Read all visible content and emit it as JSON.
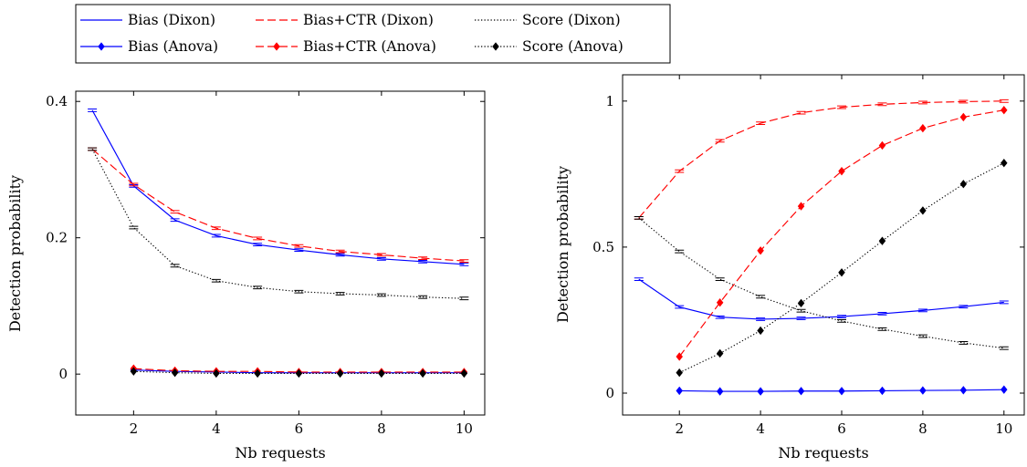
{
  "legend": {
    "entries": [
      {
        "label": "Bias (Dixon)",
        "color": "#0000ff",
        "dash": "solid",
        "marker": "none"
      },
      {
        "label": "Bias+CTR (Dixon)",
        "color": "#ff0000",
        "dash": "dashed",
        "marker": "none"
      },
      {
        "label": "Score (Dixon)",
        "color": "#000000",
        "dash": "dotted",
        "marker": "none"
      },
      {
        "label": "Bias (Anova)",
        "color": "#0000ff",
        "dash": "solid",
        "marker": "diamond"
      },
      {
        "label": "Bias+CTR (Anova)",
        "color": "#ff0000",
        "dash": "dashed",
        "marker": "diamond"
      },
      {
        "label": "Score (Anova)",
        "color": "#000000",
        "dash": "dotted",
        "marker": "diamond"
      }
    ],
    "columns": 3,
    "placement": "top-left"
  },
  "chart_data": [
    {
      "type": "line",
      "xlabel": "Nb requests",
      "ylabel": "Detection probability",
      "xlim": [
        0.6,
        10.5
      ],
      "ylim": [
        -0.06,
        0.415
      ],
      "xticks": [
        2,
        4,
        6,
        8,
        10
      ],
      "yticks": [
        0,
        0.2,
        0.4
      ],
      "ytick_labels": [
        "0",
        "0.2",
        "0.4"
      ],
      "grid": false,
      "series": [
        {
          "name": "Bias (Dixon)",
          "color": "#0000ff",
          "dash": "solid",
          "marker": "errorbar",
          "x": [
            1,
            2,
            3,
            4,
            5,
            6,
            7,
            8,
            9,
            10
          ],
          "y": [
            0.387,
            0.276,
            0.226,
            0.203,
            0.19,
            0.182,
            0.175,
            0.169,
            0.165,
            0.161
          ]
        },
        {
          "name": "Bias+CTR (Dixon)",
          "color": "#ff0000",
          "dash": "dashed",
          "marker": "errorbar",
          "x": [
            1,
            2,
            3,
            4,
            5,
            6,
            7,
            8,
            9,
            10
          ],
          "y": [
            0.33,
            0.278,
            0.238,
            0.214,
            0.199,
            0.188,
            0.18,
            0.175,
            0.17,
            0.166
          ]
        },
        {
          "name": "Score (Dixon)",
          "color": "#000000",
          "dash": "dotted",
          "marker": "errorbar",
          "x": [
            1,
            2,
            3,
            4,
            5,
            6,
            7,
            8,
            9,
            10
          ],
          "y": [
            0.33,
            0.215,
            0.159,
            0.137,
            0.127,
            0.121,
            0.118,
            0.116,
            0.113,
            0.111
          ]
        },
        {
          "name": "Bias (Anova)",
          "color": "#0000ff",
          "dash": "solid",
          "marker": "diamond",
          "x": [
            2,
            3,
            4,
            5,
            6,
            7,
            8,
            9,
            10
          ],
          "y": [
            0.006,
            0.004,
            0.003,
            0.002,
            0.002,
            0.002,
            0.002,
            0.002,
            0.002
          ]
        },
        {
          "name": "Bias+CTR (Anova)",
          "color": "#ff0000",
          "dash": "dashed",
          "marker": "diamond",
          "x": [
            2,
            3,
            4,
            5,
            6,
            7,
            8,
            9,
            10
          ],
          "y": [
            0.008,
            0.005,
            0.004,
            0.004,
            0.003,
            0.003,
            0.003,
            0.003,
            0.003
          ]
        },
        {
          "name": "Score (Anova)",
          "color": "#000000",
          "dash": "dotted",
          "marker": "diamond",
          "x": [
            2,
            3,
            4,
            5,
            6,
            7,
            8,
            9,
            10
          ],
          "y": [
            0.004,
            0.002,
            0.001,
            0.001,
            0.001,
            0.001,
            0.001,
            0.001,
            0.001
          ]
        }
      ]
    },
    {
      "type": "line",
      "xlabel": "Nb requests",
      "ylabel": "Detection probability",
      "xlim": [
        0.6,
        10.5
      ],
      "ylim": [
        -0.075,
        1.09
      ],
      "xticks": [
        2,
        4,
        6,
        8,
        10
      ],
      "yticks": [
        0,
        0.5,
        1
      ],
      "ytick_labels": [
        "0",
        "0.5",
        "1"
      ],
      "grid": false,
      "series": [
        {
          "name": "Bias (Dixon)",
          "color": "#0000ff",
          "dash": "solid",
          "marker": "errorbar",
          "x": [
            1,
            2,
            3,
            4,
            5,
            6,
            7,
            8,
            9,
            10
          ],
          "y": [
            0.39,
            0.295,
            0.26,
            0.253,
            0.256,
            0.262,
            0.272,
            0.283,
            0.296,
            0.311
          ]
        },
        {
          "name": "Bias+CTR (Dixon)",
          "color": "#ff0000",
          "dash": "dashed",
          "marker": "errorbar",
          "x": [
            1,
            2,
            3,
            4,
            5,
            6,
            7,
            8,
            9,
            10
          ],
          "y": [
            0.6,
            0.76,
            0.864,
            0.924,
            0.96,
            0.979,
            0.989,
            0.995,
            0.998,
            1.0
          ]
        },
        {
          "name": "Score (Dixon)",
          "color": "#000000",
          "dash": "dotted",
          "marker": "errorbar",
          "x": [
            1,
            2,
            3,
            4,
            5,
            6,
            7,
            8,
            9,
            10
          ],
          "y": [
            0.6,
            0.485,
            0.39,
            0.33,
            0.282,
            0.247,
            0.219,
            0.195,
            0.172,
            0.154
          ]
        },
        {
          "name": "Bias (Anova)",
          "color": "#0000ff",
          "dash": "solid",
          "marker": "diamond",
          "x": [
            2,
            3,
            4,
            5,
            6,
            7,
            8,
            9,
            10
          ],
          "y": [
            0.008,
            0.006,
            0.006,
            0.007,
            0.007,
            0.008,
            0.009,
            0.01,
            0.012
          ]
        },
        {
          "name": "Bias+CTR (Anova)",
          "color": "#ff0000",
          "dash": "dashed",
          "marker": "diamond",
          "x": [
            2,
            3,
            4,
            5,
            6,
            7,
            8,
            9,
            10
          ],
          "y": [
            0.125,
            0.31,
            0.488,
            0.64,
            0.76,
            0.848,
            0.907,
            0.945,
            0.969
          ]
        },
        {
          "name": "Score (Anova)",
          "color": "#000000",
          "dash": "dotted",
          "marker": "diamond",
          "x": [
            2,
            3,
            4,
            5,
            6,
            7,
            8,
            9,
            10
          ],
          "y": [
            0.07,
            0.136,
            0.214,
            0.308,
            0.413,
            0.521,
            0.625,
            0.716,
            0.788
          ]
        }
      ]
    }
  ]
}
